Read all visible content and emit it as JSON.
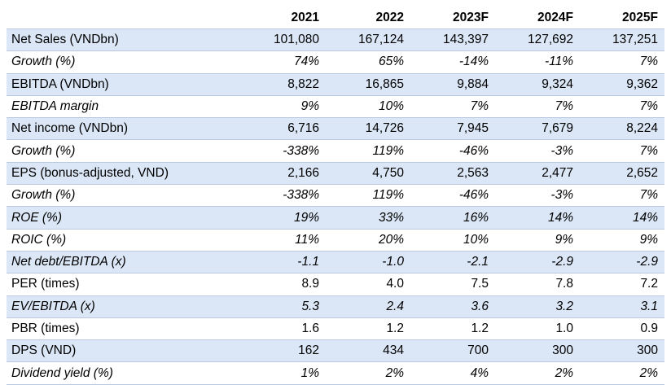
{
  "table": {
    "headers": [
      "",
      "2021",
      "2022",
      "2023F",
      "2024F",
      "2025F"
    ],
    "rows": [
      {
        "label": "Net Sales (VNDbn)",
        "values": [
          "101,080",
          "167,124",
          "143,397",
          "127,692",
          "137,251"
        ],
        "italic": false,
        "shaded": true
      },
      {
        "label": "Growth (%)",
        "values": [
          "74%",
          "65%",
          "-14%",
          "-11%",
          "7%"
        ],
        "italic": true,
        "shaded": false
      },
      {
        "label": "EBITDA (VNDbn)",
        "values": [
          "8,822",
          "16,865",
          "9,884",
          "9,324",
          "9,362"
        ],
        "italic": false,
        "shaded": true
      },
      {
        "label": "EBITDA margin",
        "values": [
          "9%",
          "10%",
          "7%",
          "7%",
          "7%"
        ],
        "italic": true,
        "shaded": false
      },
      {
        "label": "Net income (VNDbn)",
        "values": [
          "6,716",
          "14,726",
          "7,945",
          "7,679",
          "8,224"
        ],
        "italic": false,
        "shaded": true
      },
      {
        "label": "Growth (%)",
        "values": [
          "-338%",
          "119%",
          "-46%",
          "-3%",
          "7%"
        ],
        "italic": true,
        "shaded": false
      },
      {
        "label": "EPS (bonus-adjusted, VND)",
        "values": [
          "2,166",
          "4,750",
          "2,563",
          "2,477",
          "2,652"
        ],
        "italic": false,
        "shaded": true
      },
      {
        "label": "Growth (%)",
        "values": [
          "-338%",
          "119%",
          "-46%",
          "-3%",
          "7%"
        ],
        "italic": true,
        "shaded": false
      },
      {
        "label": "ROE (%)",
        "values": [
          "19%",
          "33%",
          "16%",
          "14%",
          "14%"
        ],
        "italic": true,
        "shaded": true
      },
      {
        "label": "ROIC (%)",
        "values": [
          "11%",
          "20%",
          "10%",
          "9%",
          "9%"
        ],
        "italic": true,
        "shaded": false
      },
      {
        "label": "Net debt/EBITDA (x)",
        "values": [
          "-1.1",
          "-1.0",
          "-2.1",
          "-2.9",
          "-2.9"
        ],
        "italic": true,
        "shaded": true
      },
      {
        "label": "PER (times)",
        "values": [
          "8.9",
          "4.0",
          "7.5",
          "7.8",
          "7.2"
        ],
        "italic": false,
        "shaded": false
      },
      {
        "label": "EV/EBITDA (x)",
        "values": [
          "5.3",
          "2.4",
          "3.6",
          "3.2",
          "3.1"
        ],
        "italic": true,
        "shaded": true
      },
      {
        "label": "PBR (times)",
        "values": [
          "1.6",
          "1.2",
          "1.2",
          "1.0",
          "0.9"
        ],
        "italic": false,
        "shaded": false
      },
      {
        "label": "DPS (VND)",
        "values": [
          "162",
          "434",
          "700",
          "300",
          "300"
        ],
        "italic": false,
        "shaded": true
      },
      {
        "label": "Dividend yield (%)",
        "values": [
          "1%",
          "2%",
          "4%",
          "2%",
          "2%"
        ],
        "italic": true,
        "shaded": false
      }
    ]
  }
}
